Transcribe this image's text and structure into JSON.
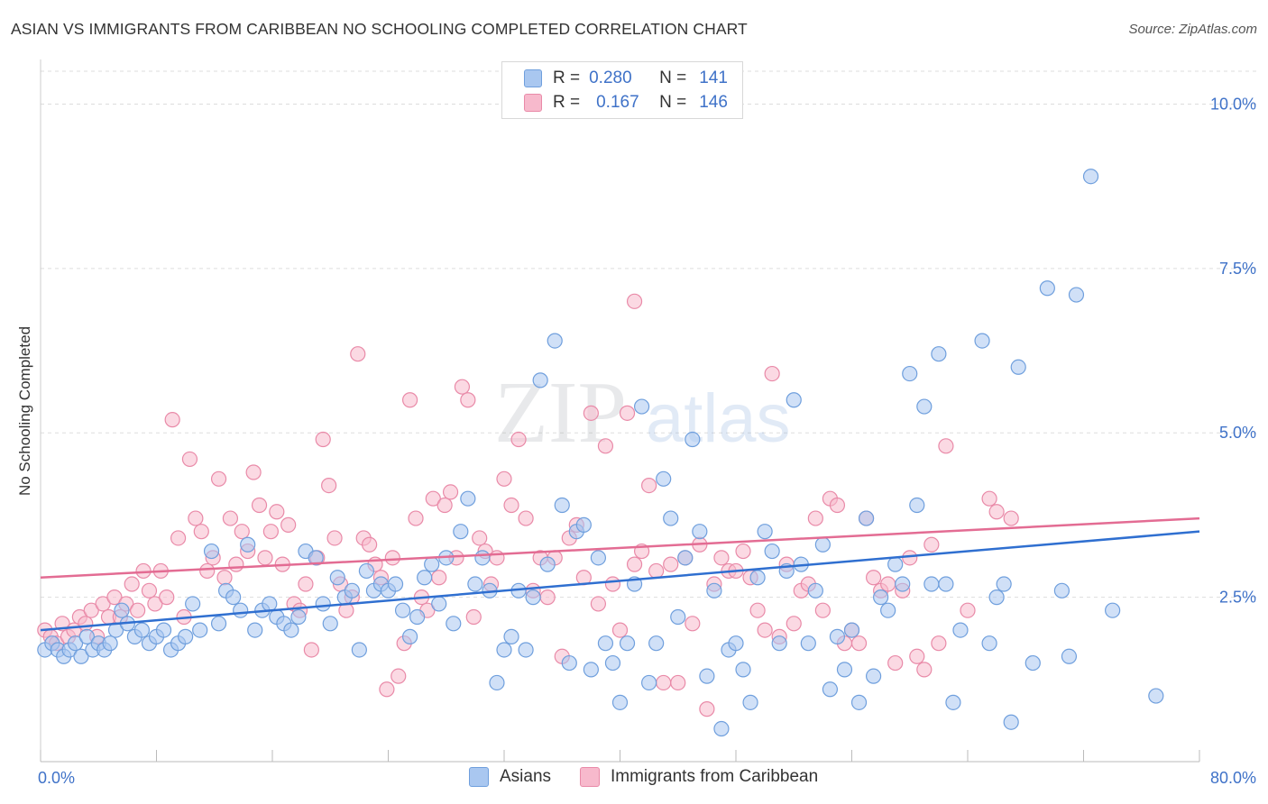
{
  "header": {
    "title": "ASIAN VS IMMIGRANTS FROM CARIBBEAN NO SCHOOLING COMPLETED CORRELATION CHART",
    "source": "Source: ZipAtlas.com"
  },
  "watermark": {
    "zip": "ZIP",
    "atlas": "atlas"
  },
  "legend": {
    "asians": {
      "r_label": "R =",
      "r_value": "0.280",
      "n_label": "N =",
      "n_value": "141"
    },
    "caribbean": {
      "r_label": "R =",
      "r_value": "0.167",
      "n_label": "N =",
      "n_value": "146"
    }
  },
  "colors": {
    "asians_fill": "#a9c7f0",
    "asians_stroke": "#6f9fdd",
    "asians_line": "#2f6fd0",
    "caribbean_fill": "#f7b9cc",
    "caribbean_stroke": "#e98aa8",
    "caribbean_line": "#e36c93",
    "tick_label": "#3f72c8",
    "grid": "#dddddd"
  },
  "chart_data": {
    "type": "scatter",
    "title": "ASIAN VS IMMIGRANTS FROM CARIBBEAN NO SCHOOLING COMPLETED CORRELATION CHART",
    "xlabel": "",
    "ylabel": "No Schooling Completed",
    "xlim": [
      0,
      80
    ],
    "ylim": [
      0,
      10.5
    ],
    "x_tick_labels": [
      "0.0%",
      "80.0%"
    ],
    "y_ticks": [
      2.5,
      5.0,
      7.5,
      10.0
    ],
    "y_tick_labels": [
      "2.5%",
      "5.0%",
      "7.5%",
      "10.0%"
    ],
    "grid": "horizontal dashed",
    "legend_position": "top-center",
    "series": [
      {
        "name": "Asians",
        "trend": {
          "x": [
            0,
            80
          ],
          "y": [
            2.0,
            3.5
          ]
        },
        "points": [
          [
            0.3,
            1.7
          ],
          [
            0.8,
            1.8
          ],
          [
            1.2,
            1.7
          ],
          [
            1.6,
            1.6
          ],
          [
            2.0,
            1.7
          ],
          [
            2.4,
            1.8
          ],
          [
            2.8,
            1.6
          ],
          [
            3.2,
            1.9
          ],
          [
            3.6,
            1.7
          ],
          [
            4.0,
            1.8
          ],
          [
            4.4,
            1.7
          ],
          [
            4.8,
            1.8
          ],
          [
            5.2,
            2.0
          ],
          [
            5.6,
            2.3
          ],
          [
            6.0,
            2.1
          ],
          [
            6.5,
            1.9
          ],
          [
            7.0,
            2.0
          ],
          [
            7.5,
            1.8
          ],
          [
            8.0,
            1.9
          ],
          [
            8.5,
            2.0
          ],
          [
            9.0,
            1.7
          ],
          [
            9.5,
            1.8
          ],
          [
            10.0,
            1.9
          ],
          [
            10.5,
            2.4
          ],
          [
            11.0,
            2.0
          ],
          [
            11.8,
            3.2
          ],
          [
            12.3,
            2.1
          ],
          [
            12.8,
            2.6
          ],
          [
            13.3,
            2.5
          ],
          [
            13.8,
            2.3
          ],
          [
            14.3,
            3.3
          ],
          [
            14.8,
            2.0
          ],
          [
            15.3,
            2.3
          ],
          [
            15.8,
            2.4
          ],
          [
            16.3,
            2.2
          ],
          [
            16.8,
            2.1
          ],
          [
            17.3,
            2.0
          ],
          [
            17.8,
            2.2
          ],
          [
            18.3,
            3.2
          ],
          [
            19.0,
            3.1
          ],
          [
            19.5,
            2.4
          ],
          [
            20.0,
            2.1
          ],
          [
            20.5,
            2.8
          ],
          [
            21.0,
            2.5
          ],
          [
            21.5,
            2.6
          ],
          [
            22.0,
            1.7
          ],
          [
            22.5,
            2.9
          ],
          [
            23.0,
            2.6
          ],
          [
            23.5,
            2.7
          ],
          [
            24.0,
            2.6
          ],
          [
            24.5,
            2.7
          ],
          [
            25.0,
            2.3
          ],
          [
            25.5,
            1.9
          ],
          [
            26.0,
            2.2
          ],
          [
            26.5,
            2.8
          ],
          [
            27.0,
            3.0
          ],
          [
            27.5,
            2.4
          ],
          [
            28.0,
            3.1
          ],
          [
            28.5,
            2.1
          ],
          [
            29.0,
            3.5
          ],
          [
            29.5,
            4.0
          ],
          [
            30.0,
            2.7
          ],
          [
            30.5,
            3.1
          ],
          [
            31.0,
            2.6
          ],
          [
            31.5,
            1.2
          ],
          [
            32.0,
            1.7
          ],
          [
            32.5,
            1.9
          ],
          [
            33.0,
            2.6
          ],
          [
            33.5,
            1.7
          ],
          [
            34.0,
            2.5
          ],
          [
            34.5,
            5.8
          ],
          [
            35.0,
            3.0
          ],
          [
            35.5,
            6.4
          ],
          [
            36.0,
            3.9
          ],
          [
            36.5,
            1.5
          ],
          [
            37.0,
            3.5
          ],
          [
            37.5,
            3.6
          ],
          [
            38.0,
            1.4
          ],
          [
            38.5,
            3.1
          ],
          [
            39.0,
            1.8
          ],
          [
            39.5,
            1.5
          ],
          [
            40.0,
            0.9
          ],
          [
            40.5,
            1.8
          ],
          [
            41.0,
            2.7
          ],
          [
            41.5,
            5.4
          ],
          [
            42.0,
            1.2
          ],
          [
            42.5,
            1.8
          ],
          [
            43.0,
            4.3
          ],
          [
            43.5,
            3.7
          ],
          [
            44.0,
            2.2
          ],
          [
            44.5,
            3.1
          ],
          [
            45.0,
            4.9
          ],
          [
            45.5,
            3.5
          ],
          [
            46.0,
            1.3
          ],
          [
            46.5,
            2.6
          ],
          [
            47.0,
            0.5
          ],
          [
            47.5,
            1.7
          ],
          [
            48.0,
            1.8
          ],
          [
            48.5,
            1.4
          ],
          [
            49.0,
            0.9
          ],
          [
            49.5,
            2.8
          ],
          [
            50.0,
            3.5
          ],
          [
            50.5,
            3.2
          ],
          [
            51.0,
            1.8
          ],
          [
            51.5,
            2.9
          ],
          [
            52.0,
            5.5
          ],
          [
            52.5,
            3.0
          ],
          [
            53.0,
            1.8
          ],
          [
            53.5,
            2.6
          ],
          [
            54.0,
            3.3
          ],
          [
            54.5,
            1.1
          ],
          [
            55.0,
            1.9
          ],
          [
            55.5,
            1.4
          ],
          [
            56.0,
            2.0
          ],
          [
            56.5,
            0.9
          ],
          [
            57.0,
            3.7
          ],
          [
            57.5,
            1.3
          ],
          [
            58.0,
            2.5
          ],
          [
            58.5,
            2.3
          ],
          [
            59.0,
            3.0
          ],
          [
            59.5,
            2.7
          ],
          [
            60.0,
            5.9
          ],
          [
            60.5,
            3.9
          ],
          [
            61.0,
            5.4
          ],
          [
            61.5,
            2.7
          ],
          [
            62.0,
            6.2
          ],
          [
            62.5,
            2.7
          ],
          [
            63.0,
            0.9
          ],
          [
            63.5,
            2.0
          ],
          [
            65.0,
            6.4
          ],
          [
            65.5,
            1.8
          ],
          [
            66.0,
            2.5
          ],
          [
            66.5,
            2.7
          ],
          [
            67.0,
            0.6
          ],
          [
            67.5,
            6.0
          ],
          [
            68.5,
            1.5
          ],
          [
            69.5,
            7.2
          ],
          [
            70.5,
            2.6
          ],
          [
            71.0,
            1.6
          ],
          [
            71.5,
            7.1
          ],
          [
            74.0,
            2.3
          ],
          [
            72.5,
            8.9
          ],
          [
            77.0,
            1.0
          ]
        ]
      },
      {
        "name": "Immigrants from Caribbean",
        "trend": {
          "x": [
            0,
            80
          ],
          "y": [
            2.8,
            3.7
          ]
        },
        "points": [
          [
            0.3,
            2.0
          ],
          [
            0.7,
            1.9
          ],
          [
            1.1,
            1.8
          ],
          [
            1.5,
            2.1
          ],
          [
            1.9,
            1.9
          ],
          [
            2.3,
            2.0
          ],
          [
            2.7,
            2.2
          ],
          [
            3.1,
            2.1
          ],
          [
            3.5,
            2.3
          ],
          [
            3.9,
            1.9
          ],
          [
            4.3,
            2.4
          ],
          [
            4.7,
            2.2
          ],
          [
            5.1,
            2.5
          ],
          [
            5.5,
            2.2
          ],
          [
            5.9,
            2.4
          ],
          [
            6.3,
            2.7
          ],
          [
            6.7,
            2.3
          ],
          [
            7.1,
            2.9
          ],
          [
            7.5,
            2.6
          ],
          [
            7.9,
            2.4
          ],
          [
            8.3,
            2.9
          ],
          [
            8.7,
            2.5
          ],
          [
            9.1,
            5.2
          ],
          [
            9.5,
            3.4
          ],
          [
            9.9,
            2.2
          ],
          [
            10.3,
            4.6
          ],
          [
            10.7,
            3.7
          ],
          [
            11.1,
            3.5
          ],
          [
            11.5,
            2.9
          ],
          [
            11.9,
            3.1
          ],
          [
            12.3,
            4.3
          ],
          [
            12.7,
            2.8
          ],
          [
            13.1,
            3.7
          ],
          [
            13.5,
            3.0
          ],
          [
            13.9,
            3.5
          ],
          [
            14.3,
            3.2
          ],
          [
            14.7,
            4.4
          ],
          [
            15.1,
            3.9
          ],
          [
            15.5,
            3.1
          ],
          [
            15.9,
            3.5
          ],
          [
            16.3,
            3.8
          ],
          [
            16.7,
            3.0
          ],
          [
            17.1,
            3.6
          ],
          [
            17.5,
            2.4
          ],
          [
            17.9,
            2.3
          ],
          [
            18.3,
            2.7
          ],
          [
            18.7,
            1.7
          ],
          [
            19.1,
            3.1
          ],
          [
            19.5,
            4.9
          ],
          [
            19.9,
            4.2
          ],
          [
            20.3,
            3.4
          ],
          [
            20.7,
            2.7
          ],
          [
            21.1,
            2.3
          ],
          [
            21.5,
            2.5
          ],
          [
            21.9,
            6.2
          ],
          [
            22.3,
            3.4
          ],
          [
            22.7,
            3.3
          ],
          [
            23.1,
            3.0
          ],
          [
            23.5,
            2.8
          ],
          [
            23.9,
            1.1
          ],
          [
            24.3,
            3.1
          ],
          [
            24.7,
            1.3
          ],
          [
            25.1,
            1.8
          ],
          [
            25.5,
            5.5
          ],
          [
            25.9,
            3.7
          ],
          [
            26.3,
            2.5
          ],
          [
            26.7,
            2.3
          ],
          [
            27.1,
            4.0
          ],
          [
            27.5,
            2.8
          ],
          [
            27.9,
            3.9
          ],
          [
            28.3,
            4.1
          ],
          [
            28.7,
            3.1
          ],
          [
            29.1,
            5.7
          ],
          [
            29.5,
            5.5
          ],
          [
            29.9,
            2.2
          ],
          [
            30.3,
            3.4
          ],
          [
            30.7,
            3.2
          ],
          [
            31.1,
            2.7
          ],
          [
            31.5,
            3.1
          ],
          [
            32.0,
            4.3
          ],
          [
            32.5,
            3.9
          ],
          [
            33.0,
            4.9
          ],
          [
            33.5,
            3.7
          ],
          [
            34.0,
            2.6
          ],
          [
            34.5,
            3.1
          ],
          [
            35.0,
            2.5
          ],
          [
            35.5,
            3.1
          ],
          [
            36.0,
            1.6
          ],
          [
            36.5,
            3.4
          ],
          [
            37.0,
            3.6
          ],
          [
            37.5,
            2.8
          ],
          [
            38.0,
            5.3
          ],
          [
            38.5,
            2.4
          ],
          [
            39.0,
            4.8
          ],
          [
            39.5,
            2.7
          ],
          [
            40.0,
            2.0
          ],
          [
            40.5,
            5.3
          ],
          [
            41.0,
            3.0
          ],
          [
            41.5,
            3.2
          ],
          [
            42.0,
            4.2
          ],
          [
            42.5,
            2.9
          ],
          [
            43.0,
            1.2
          ],
          [
            43.5,
            3.0
          ],
          [
            44.0,
            1.2
          ],
          [
            44.5,
            3.1
          ],
          [
            45.0,
            2.1
          ],
          [
            45.5,
            3.3
          ],
          [
            46.0,
            0.8
          ],
          [
            46.5,
            2.7
          ],
          [
            47.0,
            3.1
          ],
          [
            47.5,
            2.9
          ],
          [
            48.0,
            2.9
          ],
          [
            48.5,
            3.2
          ],
          [
            49.0,
            2.8
          ],
          [
            49.5,
            2.3
          ],
          [
            50.0,
            2.0
          ],
          [
            50.5,
            5.9
          ],
          [
            51.0,
            1.9
          ],
          [
            51.5,
            3.0
          ],
          [
            52.0,
            2.1
          ],
          [
            52.5,
            2.6
          ],
          [
            53.0,
            2.7
          ],
          [
            53.5,
            3.7
          ],
          [
            54.0,
            2.3
          ],
          [
            54.5,
            4.0
          ],
          [
            55.0,
            3.9
          ],
          [
            55.5,
            1.8
          ],
          [
            56.0,
            2.0
          ],
          [
            56.5,
            1.8
          ],
          [
            57.0,
            3.7
          ],
          [
            57.5,
            2.8
          ],
          [
            58.0,
            2.6
          ],
          [
            58.5,
            2.7
          ],
          [
            59.0,
            1.5
          ],
          [
            59.5,
            2.6
          ],
          [
            60.0,
            3.1
          ],
          [
            60.5,
            1.6
          ],
          [
            61.0,
            1.4
          ],
          [
            61.5,
            3.3
          ],
          [
            62.0,
            1.8
          ],
          [
            62.5,
            4.8
          ],
          [
            64.0,
            2.3
          ],
          [
            65.5,
            4.0
          ],
          [
            66.0,
            3.8
          ],
          [
            67.0,
            3.7
          ],
          [
            41.0,
            7.0
          ]
        ]
      }
    ]
  }
}
